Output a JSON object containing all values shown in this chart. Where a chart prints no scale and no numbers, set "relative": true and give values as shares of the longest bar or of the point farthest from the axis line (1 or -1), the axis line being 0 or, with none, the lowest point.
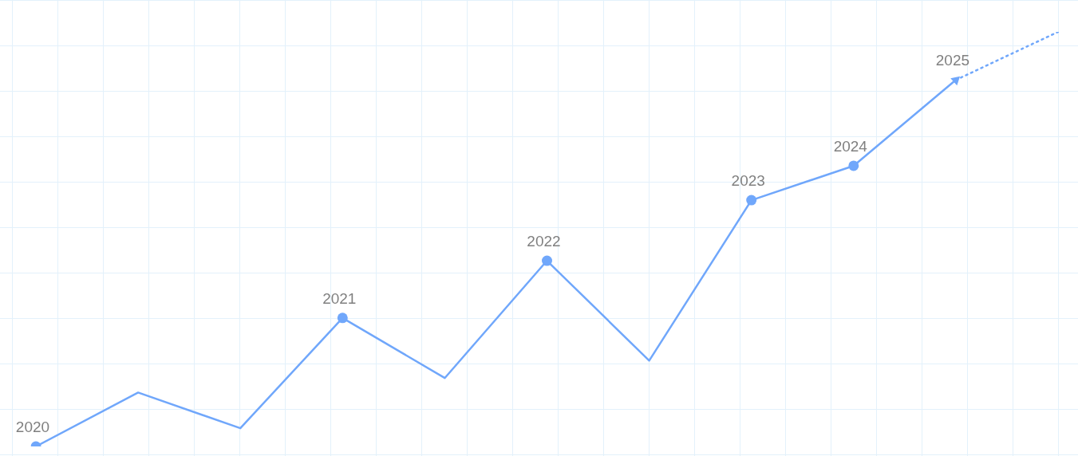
{
  "chart_data": {
    "type": "line",
    "relative": true,
    "categories": [
      "2020",
      null,
      null,
      "2021",
      null,
      "2022",
      null,
      "2023",
      "2024",
      "2025",
      null
    ],
    "series": [
      {
        "color": "#70a7fb",
        "line_style": "solid",
        "marker": "circle",
        "values": [
          0,
          0.13,
          0.044,
          0.31,
          0.165,
          0.448,
          0.207,
          0.594,
          0.677,
          0.884,
          null
        ]
      },
      {
        "color": "#70a7fb",
        "line_style": "dotted",
        "marker": "none",
        "values": [
          null,
          null,
          null,
          null,
          null,
          null,
          null,
          null,
          null,
          0.884,
          1.0
        ]
      }
    ],
    "legend": false
  }
}
